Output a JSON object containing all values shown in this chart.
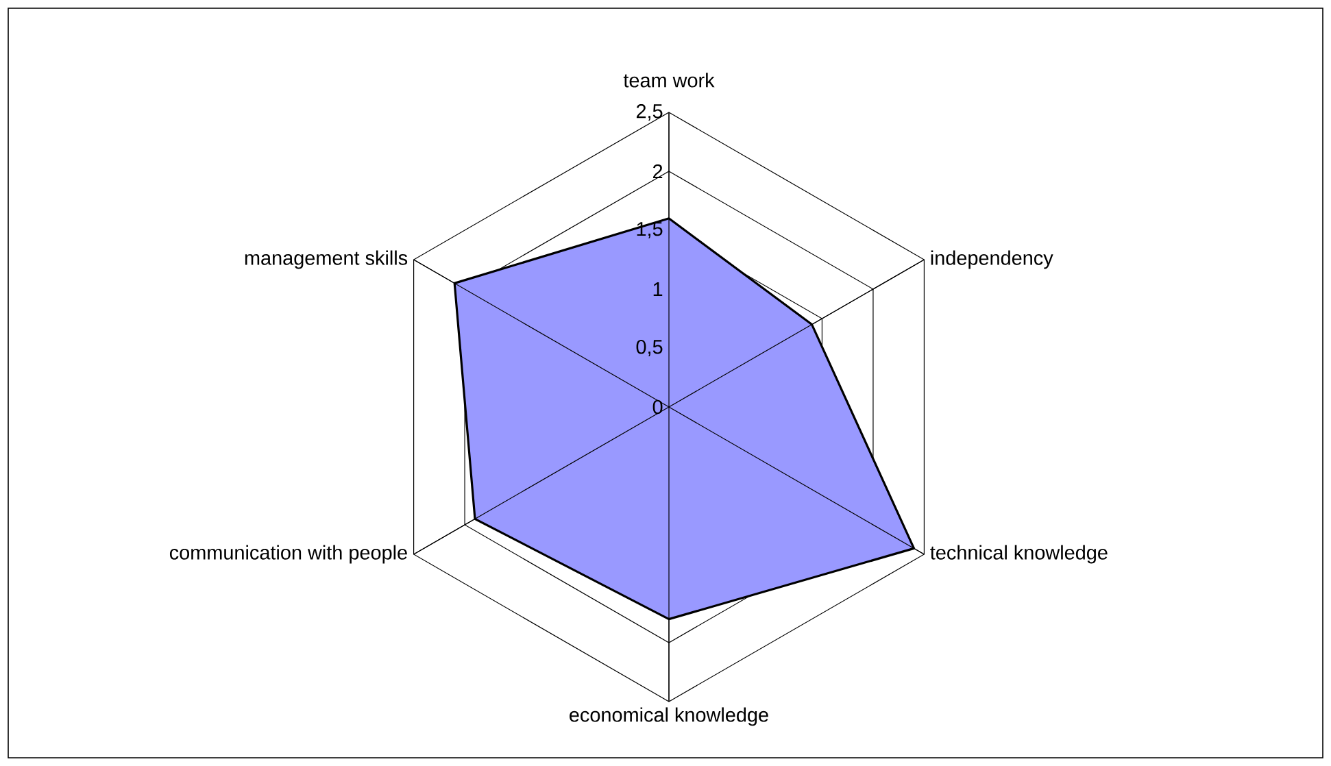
{
  "chart_data": {
    "type": "radar",
    "categories": [
      "team work",
      "independency",
      "technical knowledge",
      "economical knowledge",
      "communication with people",
      "management skills"
    ],
    "series": [
      {
        "color": "#9999ff",
        "values": [
          1.6,
          1.4,
          2.4,
          1.8,
          1.9,
          2.1
        ]
      }
    ],
    "ylim": [
      0,
      2.5
    ],
    "yticks": [
      0,
      {
        "value": 0.5,
        "label": "0,5"
      },
      1,
      {
        "value": 1.5,
        "label": "1,5"
      },
      2,
      {
        "value": 2.5,
        "label": "2,5"
      }
    ],
    "grid": true
  }
}
